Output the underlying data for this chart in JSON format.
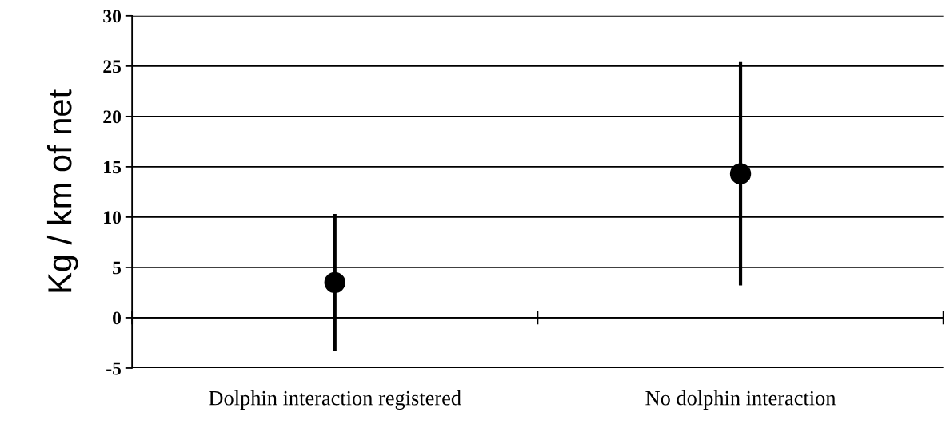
{
  "chart_data": {
    "type": "scatter",
    "ylabel": "Kg / km of net",
    "categories": [
      "Dolphin interaction registered",
      "No dolphin interaction"
    ],
    "series": [
      {
        "color": "#000000",
        "values": [
          3.5,
          14.3
        ],
        "errors": [
          [
            -3.3,
            10.3
          ],
          [
            3.2,
            25.4
          ]
        ]
      }
    ],
    "ylim": [
      -5,
      30
    ],
    "yticks": [
      -5,
      0,
      5,
      10,
      15,
      20,
      25,
      30
    ],
    "grid": "y",
    "marker": "circle",
    "legend": false
  }
}
